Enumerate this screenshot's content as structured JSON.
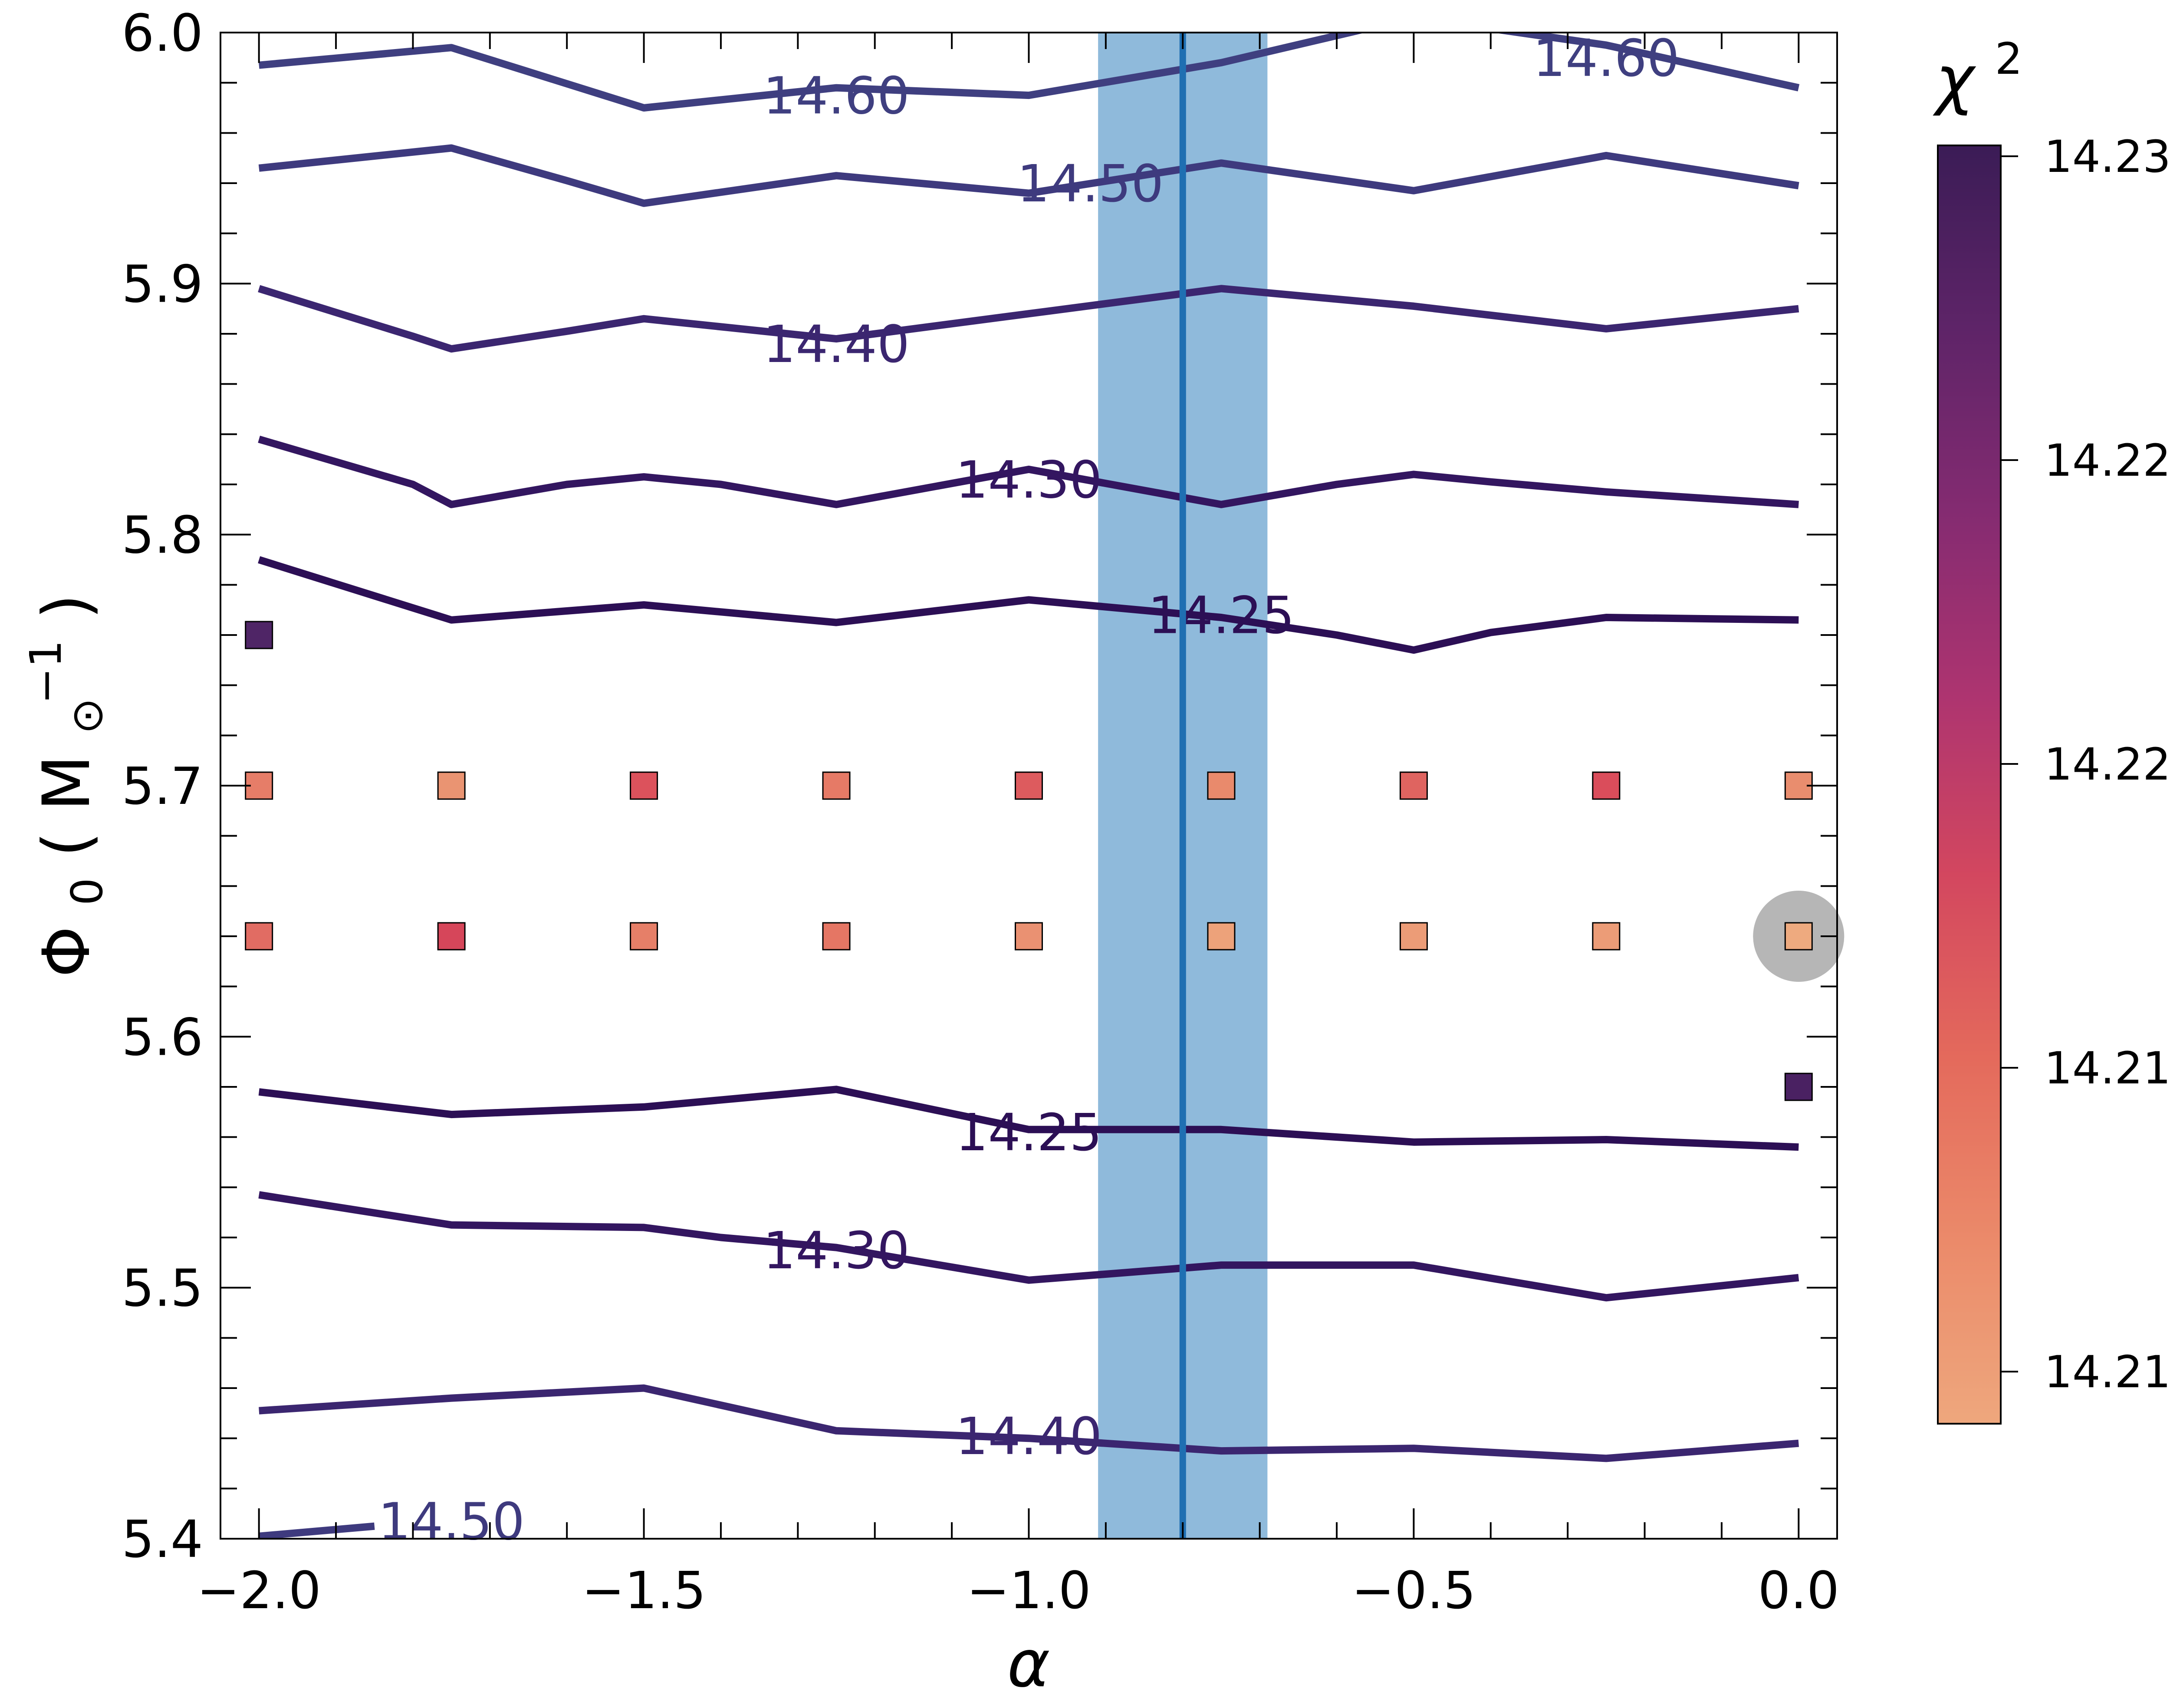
{
  "chart_data": {
    "type": "contour",
    "xlabel": "α",
    "ylabel": "Φ",
    "ylabel_sub": "0",
    "ylabel_unit_base": "M",
    "ylabel_unit_sub": "⊙",
    "ylabel_unit_sup": "−1",
    "xlim": [
      -2.05,
      0.05
    ],
    "ylim": [
      5.4,
      6.0
    ],
    "x_major_ticks": [
      -2.0,
      -1.5,
      -1.0,
      -0.5,
      0.0
    ],
    "x_tick_labels": [
      "−2.0",
      "−1.5",
      "−1.0",
      "−0.5",
      "0.0"
    ],
    "y_major_ticks": [
      5.4,
      5.5,
      5.6,
      5.7,
      5.8,
      5.9,
      6.0
    ],
    "y_tick_labels": [
      "5.4",
      "5.5",
      "5.6",
      "5.7",
      "5.8",
      "5.9",
      "6.0"
    ],
    "grid": false,
    "vertical_band": {
      "x_min": -0.91,
      "x_max": -0.69,
      "color": "#8fbadb"
    },
    "vertical_line": {
      "x": -0.8,
      "color": "#1f6fb2"
    },
    "contours": [
      {
        "level": 14.6,
        "label": "14.60",
        "color": "#3f3f80",
        "points": [
          [
            -2.0,
            5.987
          ],
          [
            -1.75,
            5.994
          ],
          [
            -1.5,
            5.97
          ],
          [
            -1.25,
            5.978
          ],
          [
            -1.0,
            5.975
          ],
          [
            -0.75,
            5.988
          ],
          [
            -0.5,
            6.006
          ],
          [
            -0.25,
            5.995
          ],
          [
            0.0,
            5.978
          ]
        ],
        "label_pos": [
          -1.25,
          5.975
        ]
      },
      {
        "level": 14.6,
        "label": "14.60",
        "color": "#3f3f80",
        "points": [],
        "label_pos": [
          -0.25,
          5.99
        ]
      },
      {
        "level": 14.5,
        "label": "14.50",
        "color": "#3e3a7e",
        "points": [
          [
            -2.0,
            5.946
          ],
          [
            -1.75,
            5.954
          ],
          [
            -1.6,
            5.941
          ],
          [
            -1.5,
            5.932
          ],
          [
            -1.25,
            5.943
          ],
          [
            -1.0,
            5.936
          ],
          [
            -0.75,
            5.948
          ],
          [
            -0.5,
            5.937
          ],
          [
            -0.25,
            5.951
          ],
          [
            0.0,
            5.939
          ]
        ],
        "label_pos": [
          -0.92,
          5.94
        ]
      },
      {
        "level": 14.4,
        "label": "14.40",
        "color": "#3b2670",
        "points": [
          [
            -2.0,
            5.898
          ],
          [
            -1.8,
            5.879
          ],
          [
            -1.75,
            5.874
          ],
          [
            -1.6,
            5.881
          ],
          [
            -1.5,
            5.886
          ],
          [
            -1.25,
            5.878
          ],
          [
            -1.0,
            5.888
          ],
          [
            -0.75,
            5.898
          ],
          [
            -0.5,
            5.891
          ],
          [
            -0.25,
            5.882
          ],
          [
            0.0,
            5.89
          ]
        ],
        "label_pos": [
          -1.25,
          5.876
        ]
      },
      {
        "level": 14.3,
        "label": "14.30",
        "color": "#331660",
        "points": [
          [
            -2.0,
            5.838
          ],
          [
            -1.8,
            5.82
          ],
          [
            -1.75,
            5.812
          ],
          [
            -1.6,
            5.82
          ],
          [
            -1.5,
            5.823
          ],
          [
            -1.4,
            5.82
          ],
          [
            -1.25,
            5.812
          ],
          [
            -1.0,
            5.826
          ],
          [
            -0.75,
            5.812
          ],
          [
            -0.6,
            5.82
          ],
          [
            -0.5,
            5.824
          ],
          [
            -0.4,
            5.821
          ],
          [
            -0.25,
            5.817
          ],
          [
            0.0,
            5.812
          ]
        ],
        "label_pos": [
          -1.0,
          5.822
        ]
      },
      {
        "level": 14.25,
        "label": "14.25",
        "color": "#2c0f55",
        "points": [
          [
            -2.0,
            5.79
          ],
          [
            -1.75,
            5.766
          ],
          [
            -1.5,
            5.772
          ],
          [
            -1.25,
            5.765
          ],
          [
            -1.0,
            5.774
          ],
          [
            -0.75,
            5.767
          ],
          [
            -0.6,
            5.76
          ],
          [
            -0.5,
            5.754
          ],
          [
            -0.4,
            5.761
          ],
          [
            -0.25,
            5.767
          ],
          [
            0.0,
            5.766
          ]
        ],
        "label_pos": [
          -0.75,
          5.768
        ]
      },
      {
        "level": 14.25,
        "label": "14.25",
        "color": "#2c0f55",
        "points": [
          [
            -2.0,
            5.578
          ],
          [
            -1.75,
            5.569
          ],
          [
            -1.5,
            5.572
          ],
          [
            -1.25,
            5.579
          ],
          [
            -1.0,
            5.563
          ],
          [
            -0.75,
            5.563
          ],
          [
            -0.5,
            5.558
          ],
          [
            -0.25,
            5.559
          ],
          [
            0.0,
            5.556
          ]
        ],
        "label_pos": [
          -1.0,
          5.562
        ]
      },
      {
        "level": 14.3,
        "label": "14.30",
        "color": "#331660",
        "points": [
          [
            -2.0,
            5.537
          ],
          [
            -1.75,
            5.525
          ],
          [
            -1.5,
            5.524
          ],
          [
            -1.4,
            5.52
          ],
          [
            -1.25,
            5.516
          ],
          [
            -1.0,
            5.503
          ],
          [
            -0.75,
            5.509
          ],
          [
            -0.5,
            5.509
          ],
          [
            -0.25,
            5.496
          ],
          [
            0.0,
            5.504
          ]
        ],
        "label_pos": [
          -1.25,
          5.515
        ]
      },
      {
        "level": 14.4,
        "label": "14.40",
        "color": "#3b2670",
        "points": [
          [
            -2.0,
            5.451
          ],
          [
            -1.75,
            5.456
          ],
          [
            -1.5,
            5.46
          ],
          [
            -1.25,
            5.443
          ],
          [
            -1.0,
            5.44
          ],
          [
            -0.75,
            5.435
          ],
          [
            -0.5,
            5.436
          ],
          [
            -0.25,
            5.432
          ],
          [
            0.0,
            5.438
          ]
        ],
        "label_pos": [
          -1.0,
          5.441
        ]
      },
      {
        "level": 14.5,
        "label": "14.50",
        "color": "#3e3a7e",
        "points": [
          [
            -2.0,
            5.401
          ],
          [
            -1.85,
            5.405
          ]
        ],
        "label_pos": [
          -1.75,
          5.407
        ]
      }
    ],
    "points": [
      {
        "x": -2.0,
        "y": 5.76,
        "color": "#4f2566"
      },
      {
        "x": 0.0,
        "y": 5.58,
        "color": "#4a2162"
      },
      {
        "x": -2.0,
        "y": 5.7,
        "color": "#e67d68"
      },
      {
        "x": -1.75,
        "y": 5.7,
        "color": "#ea9472"
      },
      {
        "x": -1.5,
        "y": 5.7,
        "color": "#dc525c"
      },
      {
        "x": -1.25,
        "y": 5.7,
        "color": "#e67a66"
      },
      {
        "x": -1.0,
        "y": 5.7,
        "color": "#dd5b5e"
      },
      {
        "x": -0.75,
        "y": 5.7,
        "color": "#e98a6c"
      },
      {
        "x": -0.5,
        "y": 5.7,
        "color": "#df6460"
      },
      {
        "x": -0.25,
        "y": 5.7,
        "color": "#da4d5b"
      },
      {
        "x": 0.0,
        "y": 5.7,
        "color": "#e98d6e"
      },
      {
        "x": -2.0,
        "y": 5.64,
        "color": "#e16c63"
      },
      {
        "x": -1.75,
        "y": 5.64,
        "color": "#d6465a"
      },
      {
        "x": -1.5,
        "y": 5.64,
        "color": "#e67f68"
      },
      {
        "x": -1.25,
        "y": 5.64,
        "color": "#e57664"
      },
      {
        "x": -1.0,
        "y": 5.64,
        "color": "#ea9172"
      },
      {
        "x": -0.75,
        "y": 5.64,
        "color": "#eda27a"
      },
      {
        "x": -0.5,
        "y": 5.64,
        "color": "#ec9c77"
      },
      {
        "x": -0.25,
        "y": 5.64,
        "color": "#ec9c77"
      },
      {
        "x": 0.0,
        "y": 5.64,
        "color": "#eeaa7f"
      }
    ],
    "best_fit_marker": {
      "x": 0.0,
      "y": 5.64,
      "color": "#9e9e9e"
    },
    "colorbar": {
      "label": "χ",
      "label_sup": "2",
      "ticks": [
        "14.23",
        "14.22",
        "14.22",
        "14.21",
        "14.21"
      ],
      "colors_top_to_bottom": [
        "#3b1c56",
        "#5e2468",
        "#842b71",
        "#ad3470",
        "#d3475f",
        "#e46a5c",
        "#eb8a6a",
        "#eea77d"
      ]
    }
  }
}
